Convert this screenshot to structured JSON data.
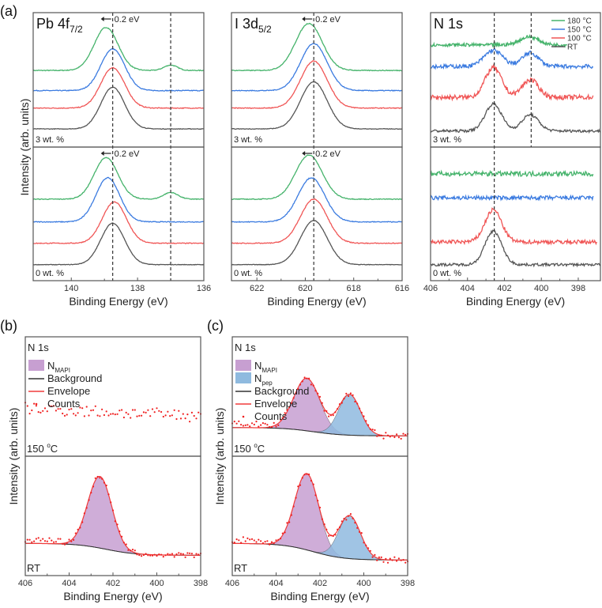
{
  "panel_labels": {
    "a": "(a)",
    "b": "(b)",
    "c": "(c)"
  },
  "ylabel": "Intensity (arb. units)",
  "xlabel": "Binding Energy (eV)",
  "chart_data": [
    {
      "type": "line",
      "id": "pb",
      "title_main": "Pb 4f",
      "title_sub": "7/2",
      "xlabel": "Binding Energy (eV)",
      "ylabel": "Intensity (arb. units)",
      "xlim": [
        141.15,
        136
      ],
      "ticks": [
        140,
        138,
        136
      ],
      "dashed_lines": [
        {
          "x": 138.75,
          "span": "full"
        },
        {
          "x": 137.0,
          "span": "full"
        }
      ],
      "shift_annotation": "0.2 eV",
      "subpanels": [
        {
          "label": "3 wt. %",
          "series": [
            {
              "name": "180 °C",
              "color": "#45b36b",
              "offset": 0.57,
              "peaks": [
                [
                  138.95,
                  0.32,
                  0.36
                ],
                [
                  137.0,
                  0.04,
                  0.2
                ]
              ],
              "noise": 0.003
            },
            {
              "name": "150 °C",
              "color": "#3b7be0",
              "offset": 0.42,
              "peaks": [
                [
                  138.75,
                  0.31,
                  0.36
                ]
              ],
              "noise": 0.003
            },
            {
              "name": "100 °C",
              "color": "#f05555",
              "offset": 0.29,
              "peaks": [
                [
                  138.75,
                  0.3,
                  0.36
                ]
              ],
              "noise": 0.003
            },
            {
              "name": "RT",
              "color": "#555555",
              "offset": 0.135,
              "peaks": [
                [
                  138.75,
                  0.31,
                  0.36
                ]
              ],
              "noise": 0.002
            }
          ]
        },
        {
          "label": "0 wt. %",
          "series": [
            {
              "name": "180 °C",
              "color": "#45b36b",
              "offset": 0.61,
              "peaks": [
                [
                  138.95,
                  0.31,
                  0.36
                ],
                [
                  137.0,
                  0.05,
                  0.22
                ]
              ],
              "noise": 0.003
            },
            {
              "name": "150 °C",
              "color": "#3b7be0",
              "offset": 0.44,
              "peaks": [
                [
                  138.9,
                  0.33,
                  0.36
                ]
              ],
              "noise": 0.003
            },
            {
              "name": "100 °C",
              "color": "#f05555",
              "offset": 0.28,
              "peaks": [
                [
                  138.7,
                  0.31,
                  0.36
                ]
              ],
              "noise": 0.003
            },
            {
              "name": "RT",
              "color": "#555555",
              "offset": 0.12,
              "peaks": [
                [
                  138.75,
                  0.31,
                  0.36
                ]
              ],
              "noise": 0.002
            }
          ]
        }
      ]
    },
    {
      "type": "line",
      "id": "i",
      "title_main": "I 3d",
      "title_sub": "5/2",
      "xlabel": "Binding Energy (eV)",
      "ylabel": "Intensity (arb. units)",
      "xlim": [
        623.05,
        616
      ],
      "ticks": [
        622,
        620,
        618,
        616
      ],
      "dashed_lines": [
        {
          "x": 619.65,
          "span": "full"
        }
      ],
      "shift_annotation": "0.2 eV",
      "subpanels": [
        {
          "label": "3 wt. %",
          "series": [
            {
              "name": "180 °C",
              "color": "#45b36b",
              "offset": 0.57,
              "peaks": [
                [
                  619.85,
                  0.35,
                  0.55
                ]
              ],
              "noise": 0.003
            },
            {
              "name": "150 °C",
              "color": "#3b7be0",
              "offset": 0.42,
              "peaks": [
                [
                  619.65,
                  0.35,
                  0.55
                ]
              ],
              "noise": 0.003
            },
            {
              "name": "100 °C",
              "color": "#f05555",
              "offset": 0.29,
              "peaks": [
                [
                  619.65,
                  0.35,
                  0.55
                ]
              ],
              "noise": 0.003
            },
            {
              "name": "RT",
              "color": "#555555",
              "offset": 0.135,
              "peaks": [
                [
                  619.65,
                  0.35,
                  0.55
                ]
              ],
              "noise": 0.002
            }
          ]
        },
        {
          "label": "0 wt. %",
          "series": [
            {
              "name": "180 °C",
              "color": "#45b36b",
              "offset": 0.61,
              "peaks": [
                [
                  619.85,
                  0.33,
                  0.55
                ]
              ],
              "noise": 0.003
            },
            {
              "name": "150 °C",
              "color": "#3b7be0",
              "offset": 0.44,
              "peaks": [
                [
                  619.75,
                  0.33,
                  0.55
                ]
              ],
              "noise": 0.003
            },
            {
              "name": "100 °C",
              "color": "#f05555",
              "offset": 0.28,
              "peaks": [
                [
                  619.65,
                  0.33,
                  0.55
                ]
              ],
              "noise": 0.003
            },
            {
              "name": "RT",
              "color": "#555555",
              "offset": 0.12,
              "peaks": [
                [
                  619.65,
                  0.33,
                  0.55
                ]
              ],
              "noise": 0.002
            }
          ]
        }
      ]
    },
    {
      "type": "line",
      "id": "n",
      "title_main": "N 1s",
      "title_sub": "",
      "xlabel": "Binding Energy (eV)",
      "ylabel": "Intensity (arb. units)",
      "xlim": [
        406,
        396.8
      ],
      "ticks": [
        406,
        404,
        402,
        400,
        398
      ],
      "dashed_lines": [
        {
          "x": 402.55,
          "span": "full"
        },
        {
          "x": 400.55,
          "span": "top"
        }
      ],
      "legend": [
        "180 °C",
        "150 °C",
        "100 °C",
        "RT"
      ],
      "legend_position": "top-right",
      "subpanels": [
        {
          "label": "3 wt. %",
          "series": [
            {
              "name": "180 °C",
              "color": "#45b36b",
              "offset": 0.76,
              "peaks": [
                [
                  400.65,
                  0.06,
                  0.5
                ]
              ],
              "noise": 0.012,
              "xmax": 398.6
            },
            {
              "name": "150 °C",
              "color": "#3b7be0",
              "offset": 0.6,
              "peaks": [
                [
                  402.6,
                  0.12,
                  0.5
                ],
                [
                  400.6,
                  0.1,
                  0.45
                ]
              ],
              "noise": 0.015,
              "xmax": 397.2
            },
            {
              "name": "100 °C",
              "color": "#f05555",
              "offset": 0.37,
              "peaks": [
                [
                  402.6,
                  0.22,
                  0.45
                ],
                [
                  400.6,
                  0.13,
                  0.45
                ]
              ],
              "noise": 0.018,
              "xmax": 397.2
            },
            {
              "name": "RT",
              "color": "#555555",
              "offset": 0.12,
              "peaks": [
                [
                  402.6,
                  0.2,
                  0.45
                ],
                [
                  400.6,
                  0.12,
                  0.45
                ]
              ],
              "noise": 0.01
            }
          ]
        },
        {
          "label": "0 wt. %",
          "series": [
            {
              "name": "180 °C",
              "color": "#45b36b",
              "offset": 0.8,
              "peaks": [],
              "noise": 0.018,
              "xmax": 397.2
            },
            {
              "name": "150 °C",
              "color": "#3b7be0",
              "offset": 0.62,
              "peaks": [],
              "noise": 0.015,
              "xmax": 397.2
            },
            {
              "name": "100 °C",
              "color": "#f05555",
              "offset": 0.29,
              "peaks": [
                [
                  402.6,
                  0.24,
                  0.45
                ]
              ],
              "noise": 0.015,
              "xmax": 397.0
            },
            {
              "name": "RT",
              "color": "#555555",
              "offset": 0.12,
              "peaks": [
                [
                  402.6,
                  0.25,
                  0.45
                ]
              ],
              "noise": 0.01
            }
          ]
        }
      ]
    },
    {
      "type": "area",
      "id": "b",
      "title": "N 1s",
      "xlabel": "Binding Energy (eV)",
      "ylabel": "Intensity (arb. units)",
      "xlim": [
        406,
        398
      ],
      "ticks": [
        406,
        404,
        402,
        400,
        398
      ],
      "legend": [
        {
          "name": "N",
          "sub": "MAPI",
          "kind": "fill",
          "color": "#c79fd1"
        },
        {
          "name": "Background",
          "kind": "line",
          "color": "#333333"
        },
        {
          "name": "Envelope",
          "kind": "line",
          "color": "#f03b3b"
        },
        {
          "name": "Counts",
          "kind": "dot",
          "color": "#f02020"
        }
      ],
      "subpanels": [
        {
          "label_main": "150 ",
          "label_sup": "o",
          "label_end": "C",
          "counts_only": true,
          "baseline": 0.4,
          "noise": 0.05,
          "components": [],
          "background": [
            0.42,
            0.35
          ]
        },
        {
          "label_main": "RT",
          "label_sup": "",
          "label_end": "",
          "counts_only": false,
          "noise": 0.02,
          "background": [
            0.27,
            0.17
          ],
          "components": [
            {
              "name": "MAPI",
              "center": 402.6,
              "height": 0.6,
              "width": 0.55,
              "color": "#c79fd1"
            }
          ]
        }
      ]
    },
    {
      "type": "area",
      "id": "c",
      "title": "N 1s",
      "xlabel": "Binding Energy (eV)",
      "ylabel": "Intensity (arb. units)",
      "xlim": [
        406,
        398
      ],
      "ticks": [
        406,
        404,
        402,
        400,
        398
      ],
      "legend": [
        {
          "name": "N",
          "sub": "MAPI",
          "kind": "fill",
          "color": "#c79fd1"
        },
        {
          "name": "N",
          "sub": "pep",
          "kind": "fill",
          "color": "#8fbadf"
        },
        {
          "name": "Background",
          "kind": "line",
          "color": "#333333"
        },
        {
          "name": "Envelope",
          "kind": "line",
          "color": "#f03b3b"
        },
        {
          "name": "Counts",
          "kind": "dot",
          "color": "#f02020"
        }
      ],
      "subpanels": [
        {
          "label_main": "150 ",
          "label_sup": "o",
          "label_end": "C",
          "counts_only": false,
          "noise": 0.025,
          "background": [
            0.24,
            0.17
          ],
          "components": [
            {
              "name": "MAPI",
              "center": 402.6,
              "height": 0.44,
              "width": 0.6,
              "color": "#c79fd1"
            },
            {
              "name": "pep",
              "center": 400.65,
              "height": 0.34,
              "width": 0.5,
              "color": "#8fbadf"
            }
          ]
        },
        {
          "label_main": "RT",
          "label_sup": "",
          "label_end": "",
          "counts_only": false,
          "noise": 0.025,
          "background": [
            0.27,
            0.13
          ],
          "components": [
            {
              "name": "MAPI",
              "center": 402.6,
              "height": 0.64,
              "width": 0.55,
              "color": "#c79fd1"
            },
            {
              "name": "pep",
              "center": 400.65,
              "height": 0.36,
              "width": 0.5,
              "color": "#8fbadf"
            }
          ]
        }
      ]
    }
  ]
}
